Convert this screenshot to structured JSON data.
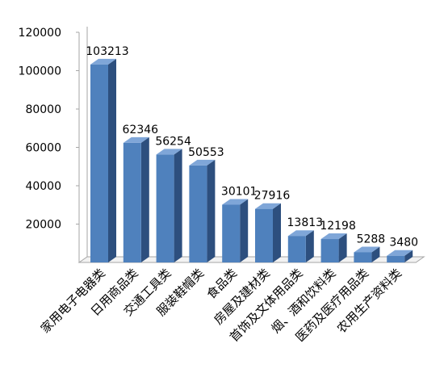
{
  "chart_data": {
    "type": "bar",
    "title": "",
    "xlabel": "",
    "ylabel": "",
    "ylim": [
      0,
      120000
    ],
    "yticks": [
      "20000",
      "40000",
      "60000",
      "80000",
      "100000",
      "120000"
    ],
    "grid": false,
    "legend": "none",
    "style": "3d-column",
    "colors": {
      "bar_front": "#4F81BD",
      "bar_top": "#7FA6D8",
      "bar_side": "#2D4F7E",
      "axis": "#A6A6A6"
    },
    "categories": [
      "家用电子电器类",
      "日用商品类",
      "交通工具类",
      "服装鞋帽类",
      "食品类",
      "房屋及建材类",
      "首饰及文体用品类",
      "烟、酒和饮料类",
      "医药及医疗用品类",
      "农用生产资料类"
    ],
    "values": [
      103213,
      62346,
      56254,
      50553,
      30101,
      27916,
      13813,
      12198,
      5288,
      3480
    ],
    "data_labels": [
      "103213",
      "62346",
      "56254",
      "50553",
      "30101",
      "27916",
      "13813",
      "12198",
      "5288",
      "3480"
    ]
  }
}
